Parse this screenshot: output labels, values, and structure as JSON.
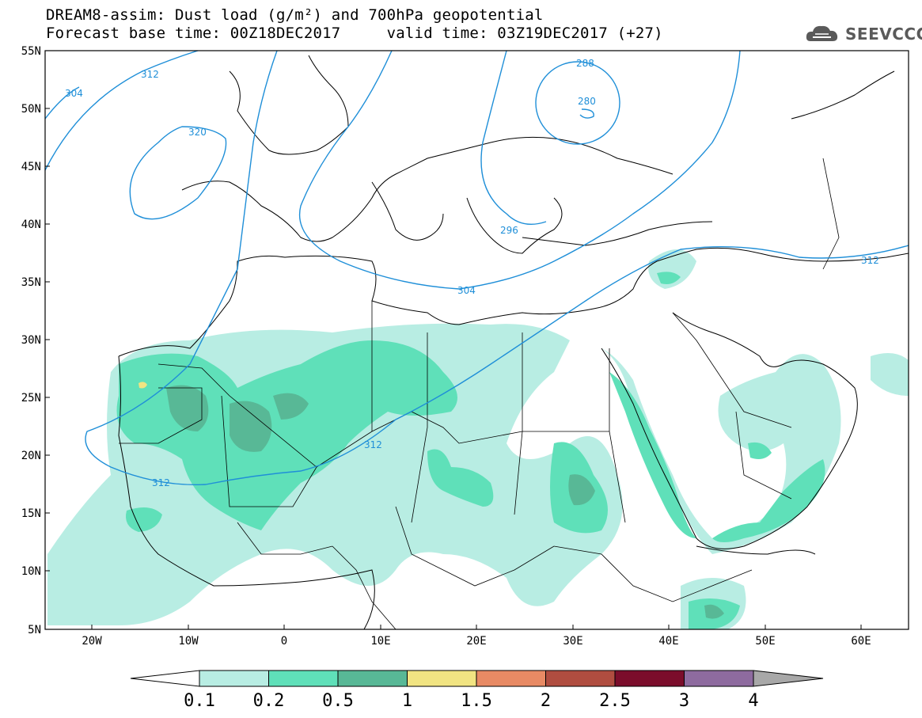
{
  "header": {
    "title_line1": "DREAM8-assim: Dust load (g/m²) and 700hPa geopotential",
    "title_line2": "Forecast base time: 00Z18DEC2017     valid time: 03Z19DEC2017 (+27)"
  },
  "logo": {
    "text": "SEEVCCC",
    "icon": "cloud-icon"
  },
  "axes": {
    "lat_labels": [
      "55N",
      "50N",
      "45N",
      "40N",
      "35N",
      "30N",
      "25N",
      "20N",
      "15N",
      "10N",
      "5N"
    ],
    "lon_labels": [
      "20W",
      "10W",
      "0",
      "10E",
      "20E",
      "30E",
      "40E",
      "50E",
      "60E"
    ]
  },
  "contours": {
    "labels": [
      "304",
      "312",
      "320",
      "288",
      "280",
      "296",
      "304",
      "312",
      "312",
      "312"
    ],
    "color": "#1f8fd8"
  },
  "colorbar": {
    "labels": [
      "0.1",
      "0.2",
      "0.5",
      "1",
      "1.5",
      "2",
      "2.5",
      "3",
      "4"
    ],
    "colors": [
      "#ffffff",
      "#b8ede3",
      "#5fe0b9",
      "#58b896",
      "#f1e482",
      "#e88a64",
      "#b04d40",
      "#7b0d2b",
      "#8e6b9f",
      "#a8a8a8"
    ]
  },
  "colors": {
    "dust_light": "#b8ede3",
    "dust_mid": "#5fe0b9",
    "dust_dark": "#58b896",
    "dust_yellow": "#f1e482",
    "contour": "#1f8fd8"
  }
}
